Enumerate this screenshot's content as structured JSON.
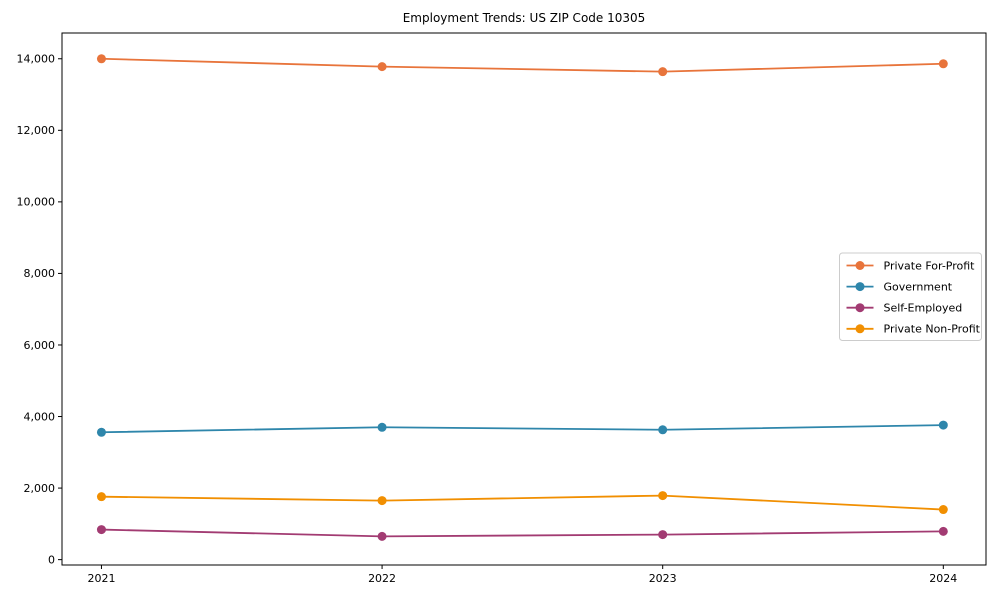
{
  "chart": {
    "title": "Employment Trends: US ZIP Code 10305"
  },
  "chart_data": {
    "type": "line",
    "title": "Employment Trends: US ZIP Code 10305",
    "xlabel": "",
    "ylabel": "",
    "categories": [
      "2021",
      "2022",
      "2023",
      "2024"
    ],
    "x": [
      2021,
      2022,
      2023,
      2024
    ],
    "series": [
      {
        "name": "Private For-Profit",
        "color": "#E8743B",
        "values": [
          14000,
          13780,
          13640,
          13860
        ]
      },
      {
        "name": "Government",
        "color": "#2E86AB",
        "values": [
          3560,
          3700,
          3630,
          3760
        ]
      },
      {
        "name": "Self-Employed",
        "color": "#A23B72",
        "values": [
          840,
          650,
          700,
          790
        ]
      },
      {
        "name": "Private Non-Profit",
        "color": "#F18F01",
        "values": [
          1760,
          1650,
          1790,
          1400
        ]
      }
    ],
    "ylim": [
      -150,
      14720
    ],
    "yticks": [
      0,
      2000,
      4000,
      6000,
      8000,
      10000,
      12000,
      14000
    ],
    "ytick_labels": [
      "0",
      "2,000",
      "4,000",
      "6,000",
      "8,000",
      "10,000",
      "12,000",
      "14,000"
    ],
    "grid": false,
    "marker": "circle",
    "legend_position": "center right",
    "axis_color": "#000000",
    "legend_border_color": "#cccccc",
    "legend_bg_color": "#ffffff"
  }
}
